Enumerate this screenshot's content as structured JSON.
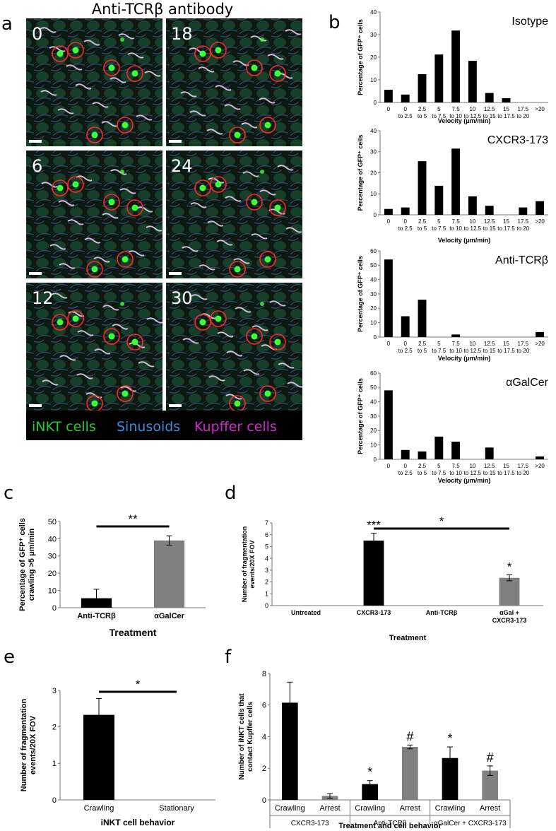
{
  "panel_labels": [
    "a",
    "b",
    "c",
    "d",
    "e",
    "f"
  ],
  "microscopy": {
    "title": "Anti-TCRβ antibody",
    "frames": [
      "0",
      "18",
      "6",
      "24",
      "12",
      "30"
    ],
    "legend": [
      {
        "text": "iNKT cells",
        "color": "#22cc33"
      },
      {
        "text": "Sinusoids",
        "color": "#2f8fe0"
      },
      {
        "text": "Kupffer cells",
        "color": "#d02ad0"
      }
    ],
    "colors": {
      "background": "#0d1a14",
      "tissue": "#1f5a3a",
      "vessel": "#5a6ab0",
      "kupffer": "#f0d8f4",
      "cell": "#3dff3d",
      "circle": "#ff2a2a"
    }
  },
  "chart_data": [
    {
      "id": "b1",
      "type": "bar",
      "title": "Isotype",
      "xlabel": "Velocity (μm/min)",
      "ylabel": "Percentage of GFP⁺ cells",
      "categories": [
        "0",
        "0 to 2.5",
        "2.5 to 5",
        "5 to 7.5",
        "7.5 to 10",
        "10 to 12.5",
        "12.5 to 15",
        "15 to 17.5",
        "17.5 to 20",
        ">20"
      ],
      "values": [
        5.6,
        3.5,
        12.5,
        21.2,
        31.8,
        18.4,
        4.2,
        1.9,
        0,
        0
      ],
      "ylim": [
        0,
        40
      ],
      "yticks": [
        0,
        10,
        20,
        30,
        40
      ]
    },
    {
      "id": "b2",
      "type": "bar",
      "title": "CXCR3-173",
      "xlabel": "Velocity (μm/min)",
      "ylabel": "Percentage of GFP⁺ cells",
      "categories": [
        "0",
        "0 to 2.5",
        "2.5 to 5",
        "5 to 7.5",
        "7.5 to 10",
        "10 to 12.5",
        "12.5 to 15",
        "15 to 17.5",
        "17.5 to 20",
        ">20"
      ],
      "values": [
        2.8,
        3.5,
        25.5,
        13.8,
        31.5,
        8.8,
        4.3,
        0,
        3.5,
        6.5
      ],
      "ylim": [
        0,
        40
      ],
      "yticks": [
        0,
        10,
        20,
        30,
        40
      ]
    },
    {
      "id": "b3",
      "type": "bar",
      "title": "Anti-TCRβ",
      "xlabel": "Velocity (μm/min)",
      "ylabel": "Percentage of GFP⁺ cells",
      "categories": [
        "0",
        "0 to 2.5",
        "2.5 to 5",
        "5 to 7.5",
        "7.5 to 10",
        "10 to 12.5",
        "12.5 to 15",
        "15 to 17.5",
        "17.5 to 20",
        ">20"
      ],
      "values": [
        54,
        14.5,
        26,
        0,
        1.8,
        0,
        0,
        0,
        0,
        3.5
      ],
      "ylim": [
        0,
        60
      ],
      "yticks": [
        0,
        10,
        20,
        30,
        40,
        50,
        60
      ]
    },
    {
      "id": "b4",
      "type": "bar",
      "title": "αGalCer",
      "xlabel": "Velocity (μm/min)",
      "ylabel": "Percentage of GFP⁺ cells",
      "categories": [
        "0",
        "0 to 2.5",
        "2.5 to 5",
        "5 to 7.5",
        "7.5 to 10",
        "10 to 12.5",
        "12.5 to 15",
        "15 to 17.5",
        "17.5 to 20",
        ">20"
      ],
      "values": [
        48,
        6.5,
        5.5,
        15.8,
        12.3,
        0,
        8.2,
        0,
        0,
        2
      ],
      "ylim": [
        0,
        60
      ],
      "yticks": [
        0,
        10,
        20,
        30,
        40,
        50,
        60
      ]
    },
    {
      "id": "c",
      "type": "bar",
      "xlabel": "Treatment",
      "ylabel": "Percentage of GFP⁺ cells crawling >5 μm/min",
      "categories": [
        "Anti-TCRβ",
        "αGalCer"
      ],
      "values": [
        5.5,
        39
      ],
      "errors": [
        5.2,
        2.7
      ],
      "colors": [
        "#000000",
        "#808080"
      ],
      "ylim": [
        0,
        50
      ],
      "yticks": [
        0,
        10,
        20,
        30,
        40,
        50
      ],
      "significance": [
        {
          "from": 0,
          "to": 1,
          "label": "**"
        }
      ]
    },
    {
      "id": "d",
      "type": "bar",
      "xlabel": "Treatment",
      "ylabel": "Number of fragmentation events/20X FOV",
      "categories": [
        "Untreated",
        "CXCR3-173",
        "Anti-TCRβ",
        "αGal + CXCR3-173"
      ],
      "values": [
        0,
        5.5,
        0,
        2.35
      ],
      "errors": [
        0,
        0.62,
        0,
        0.25
      ],
      "colors": [
        "#000000",
        "#000000",
        "#808080",
        "#808080"
      ],
      "stars": [
        "",
        "***",
        "",
        "*"
      ],
      "ylim": [
        0,
        7
      ],
      "yticks": [
        0,
        1,
        2,
        3,
        4,
        5,
        6,
        7
      ],
      "significance": [
        {
          "from": 1,
          "to": 3,
          "label": "*"
        }
      ]
    },
    {
      "id": "e",
      "type": "bar",
      "xlabel": "iNKT cell behavior",
      "ylabel": "Number of fragmentation events/20X FOV",
      "categories": [
        "Crawling",
        "Stationary"
      ],
      "values": [
        2.33,
        0
      ],
      "errors": [
        0.45,
        0
      ],
      "colors": [
        "#000000",
        "#000000"
      ],
      "ylim": [
        0,
        3
      ],
      "yticks": [
        0,
        1,
        2,
        3
      ],
      "significance": [
        {
          "from": 0,
          "to": 1,
          "label": "*"
        }
      ]
    },
    {
      "id": "f",
      "type": "bar",
      "xlabel": "Treatment and cell behavior",
      "ylabel": "Number of iNKT cells that contact Kupffer cells",
      "categories": [
        "Crawling",
        "Arrest",
        "Crawling",
        "Arrest",
        "Crawling",
        "Arrest"
      ],
      "groups": [
        "CXCR3-173",
        "Anti-TCRβ",
        "αGalCer + CXCR3-173"
      ],
      "values": [
        6.15,
        0.25,
        1,
        3.35,
        2.65,
        1.85
      ],
      "errors": [
        1.3,
        0.15,
        0.22,
        0.12,
        0.7,
        0.3
      ],
      "colors": [
        "#000000",
        "#808080",
        "#000000",
        "#808080",
        "#000000",
        "#808080"
      ],
      "stars": [
        "",
        "",
        "*",
        "#",
        "*",
        "#"
      ],
      "ylim": [
        0,
        8
      ],
      "yticks": [
        0,
        2,
        4,
        6,
        8
      ]
    }
  ]
}
